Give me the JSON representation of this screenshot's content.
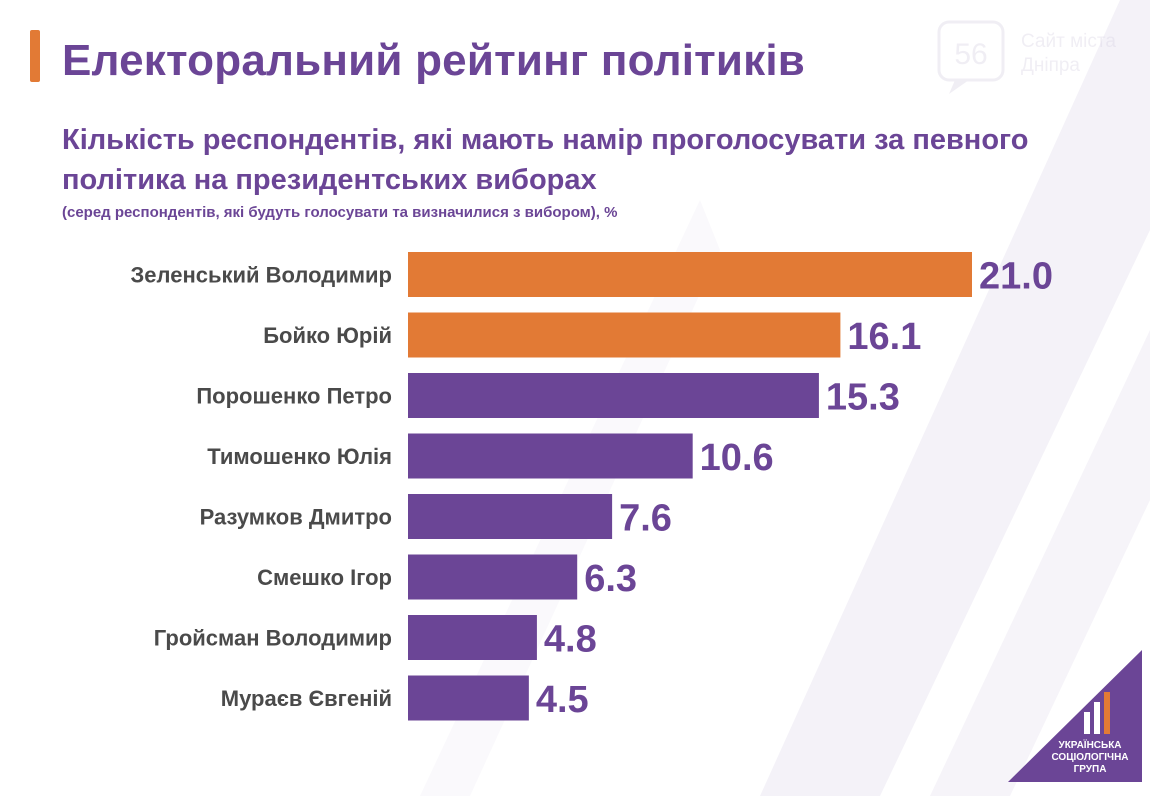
{
  "header": {
    "title": "Електоральний рейтинг політиків",
    "subtitle": "Кількість респондентів, які мають намір проголосувати за певного політика на президентських виборах",
    "note": "(серед респондентів, які будуть голосувати  та визначилися з вибором), %"
  },
  "watermark": {
    "badge": "56",
    "line1": "Сайт міста",
    "line2": "Дніпра"
  },
  "logo": {
    "lines": [
      "УКРАЇНСЬКА",
      "СОЦІОЛОГІЧНА",
      "ГРУПА"
    ]
  },
  "colors": {
    "purple": "#6b4596",
    "orange": "#e27a35",
    "label": "#4a4a4a",
    "value": "#6b4596"
  },
  "chart_data": {
    "type": "bar",
    "orientation": "horizontal",
    "categories": [
      "Зеленський Володимир",
      "Бойко Юрій",
      "Порошенко Петро",
      "Тимошенко Юлія",
      "Разумков Дмитро",
      "Смешко Ігор",
      "Гройсман Володимир",
      "Мураєв Євгеній"
    ],
    "values": [
      21.0,
      16.1,
      15.3,
      10.6,
      7.6,
      6.3,
      4.8,
      4.5
    ],
    "value_labels": [
      "21.0",
      "16.1",
      "15.3",
      "10.6",
      "7.6",
      "6.3",
      "4.8",
      "4.5"
    ],
    "bar_colors": [
      "#e27a35",
      "#e27a35",
      "#6b4596",
      "#6b4596",
      "#6b4596",
      "#6b4596",
      "#6b4596",
      "#6b4596"
    ],
    "title": "Електоральний рейтинг політиків",
    "xlabel": "",
    "ylabel": "",
    "xlim": [
      0,
      21.0
    ],
    "grid": false,
    "legend": "none"
  }
}
